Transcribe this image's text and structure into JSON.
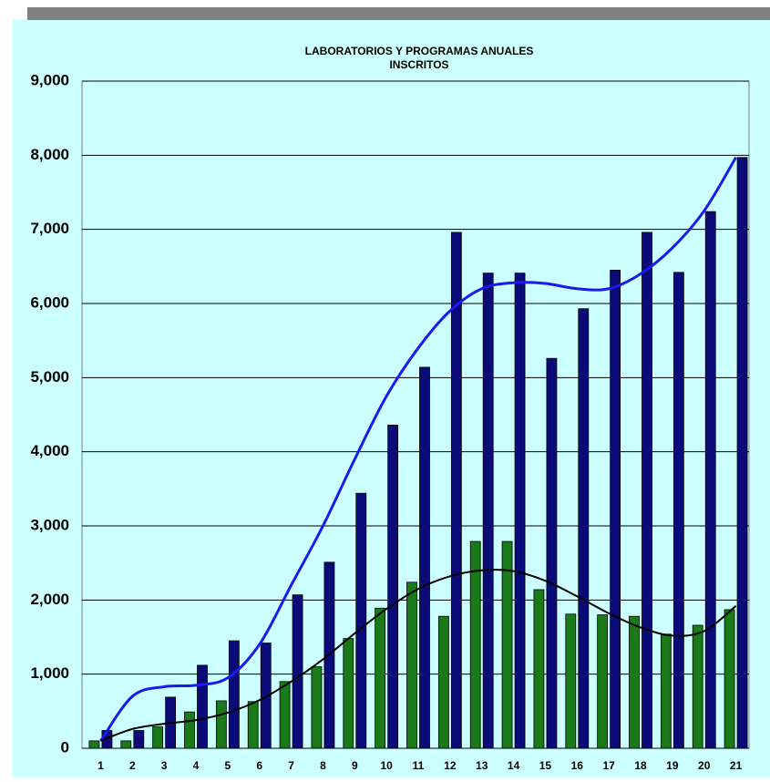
{
  "chart_data": {
    "type": "bar",
    "title": "LABORATORIOS Y PROGRAMAS ANUALES",
    "subtitle": "INSCRITOS",
    "categories": [
      "1",
      "2",
      "3",
      "4",
      "5",
      "6",
      "7",
      "8",
      "9",
      "10",
      "11",
      "12",
      "13",
      "14",
      "15",
      "16",
      "17",
      "18",
      "19",
      "20",
      "21"
    ],
    "series": [
      {
        "type": "bar",
        "color": "#1a7a1a",
        "values": [
          100,
          100,
          290,
          490,
          640,
          630,
          900,
          1100,
          1480,
          1890,
          2240,
          1780,
          2790,
          2790,
          2140,
          1810,
          1800,
          1780,
          1540,
          1660,
          1870
        ]
      },
      {
        "type": "bar",
        "color": "#0a0a78",
        "values": [
          240,
          240,
          690,
          1120,
          1450,
          1420,
          2070,
          2510,
          3440,
          4360,
          5140,
          6960,
          6410,
          6410,
          5260,
          5930,
          6450,
          6960,
          6420,
          7240,
          7970
        ]
      },
      {
        "type": "line",
        "color": "#1a1aee",
        "values": [
          100,
          700,
          830,
          850,
          950,
          1400,
          2200,
          3000,
          3900,
          4750,
          5400,
          5900,
          6200,
          6280,
          6270,
          6200,
          6200,
          6400,
          6750,
          7250,
          7970
        ]
      },
      {
        "type": "line",
        "color": "#000000",
        "values": [
          100,
          260,
          330,
          380,
          480,
          650,
          900,
          1200,
          1550,
          1880,
          2150,
          2320,
          2400,
          2390,
          2260,
          2050,
          1820,
          1630,
          1520,
          1580,
          1920
        ]
      }
    ],
    "ylim": [
      0,
      9000
    ],
    "yticks": [
      0,
      {
        "value": 1000,
        "label": "1,000"
      },
      {
        "value": 2000,
        "label": "2,000"
      },
      {
        "value": 3000,
        "label": "3,000"
      },
      {
        "value": 4000,
        "label": "4,000"
      },
      {
        "value": 5000,
        "label": "5,000"
      },
      {
        "value": 6000,
        "label": "6,000"
      },
      {
        "value": 7000,
        "label": "7,000"
      },
      {
        "value": 8000,
        "label": "8,000"
      },
      {
        "value": 9000,
        "label": "9,000"
      }
    ],
    "grid": true
  }
}
